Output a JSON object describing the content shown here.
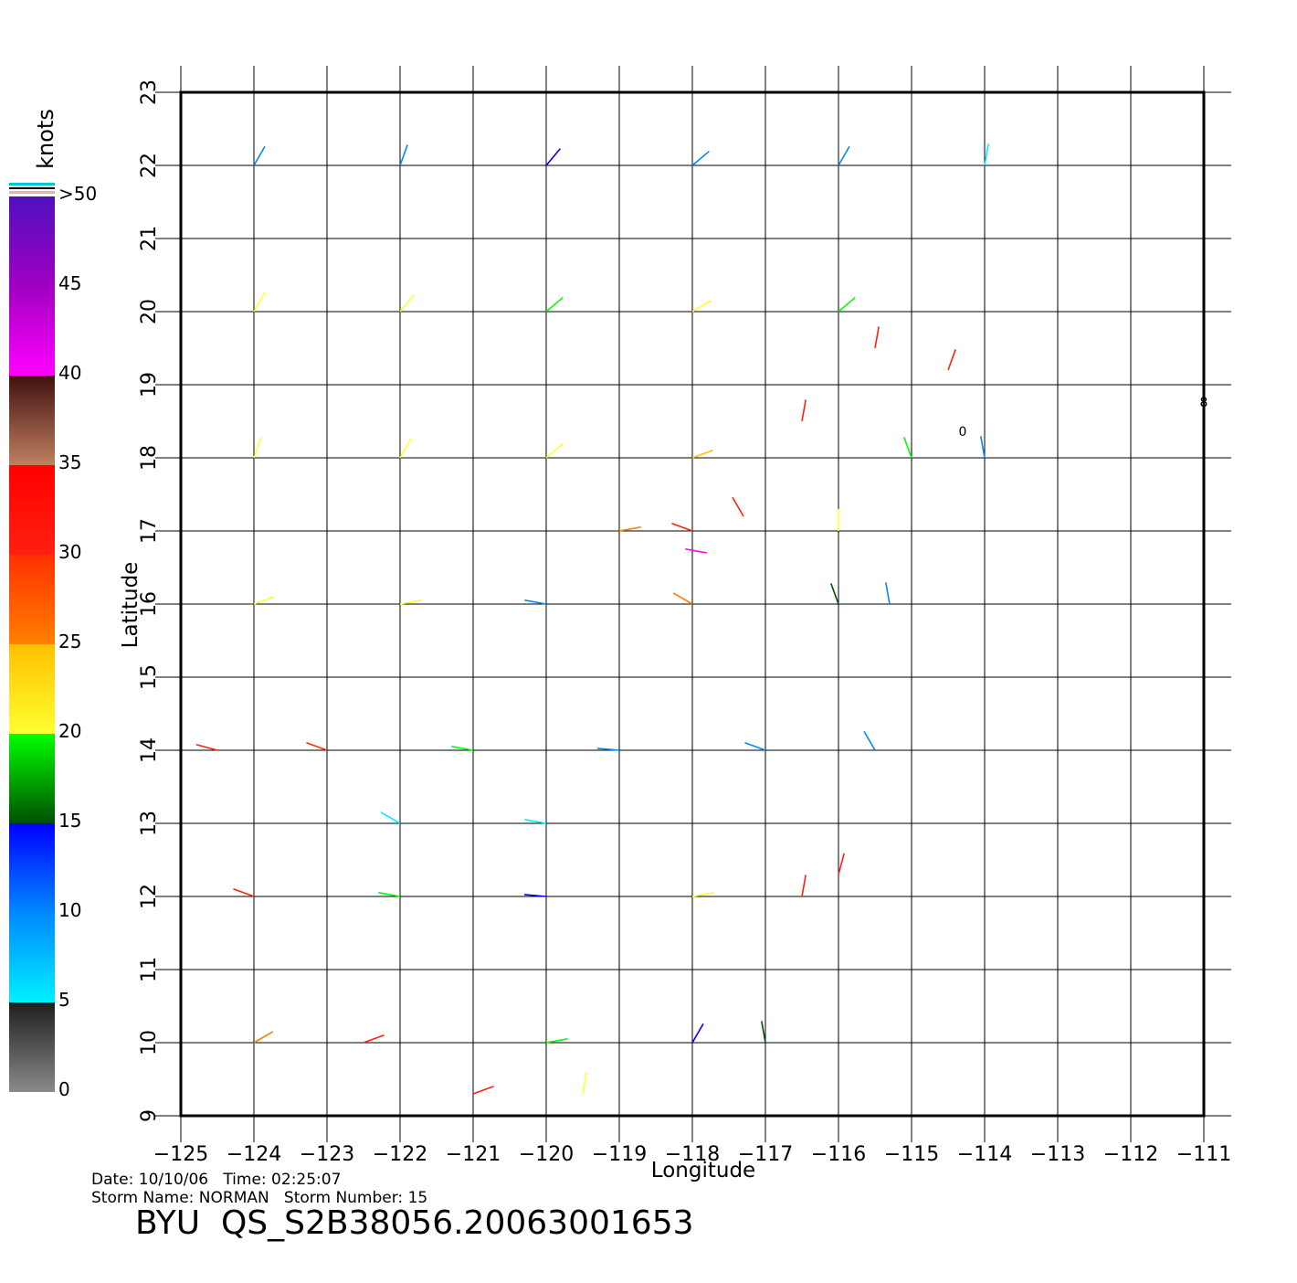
{
  "map": {
    "xlabel": "Longitude",
    "ylabel": "Latitude",
    "xlim": [
      -125,
      -111
    ],
    "ylim": [
      9,
      23
    ],
    "xticks": [
      {
        "value": -125,
        "label": "−125"
      },
      {
        "value": -124,
        "label": "−124"
      },
      {
        "value": -123,
        "label": "−123"
      },
      {
        "value": -122,
        "label": "−122"
      },
      {
        "value": -121,
        "label": "−121"
      },
      {
        "value": -120,
        "label": "−120"
      },
      {
        "value": -119,
        "label": "−119"
      },
      {
        "value": -118,
        "label": "−118"
      },
      {
        "value": -117,
        "label": "−117"
      },
      {
        "value": -116,
        "label": "−116"
      },
      {
        "value": -115,
        "label": "−115"
      },
      {
        "value": -114,
        "label": "−114"
      },
      {
        "value": -113,
        "label": "−113"
      },
      {
        "value": -112,
        "label": "−112"
      },
      {
        "value": -111,
        "label": "−111"
      }
    ],
    "yticks": [
      9,
      10,
      11,
      12,
      13,
      14,
      15,
      16,
      17,
      18,
      19,
      20,
      21,
      22,
      23
    ],
    "grid": true,
    "colorbar": {
      "title": "knots",
      "ticks": [
        0,
        5,
        10,
        15,
        20,
        25,
        30,
        35,
        40,
        45,
        {
          "value": 50,
          "label": ">50"
        }
      ],
      "bands": [
        [
          "#8a8a8a",
          "#1e1e1e"
        ],
        [
          "#00f0ff",
          "#0088ff"
        ],
        [
          "#0088ff",
          "#0000ff"
        ],
        [
          "#005000",
          "#00ff00"
        ],
        [
          "#ffff30",
          "#ffc000"
        ],
        [
          "#ff8000",
          "#ff3000"
        ],
        [
          "#ff2010",
          "#ff0000"
        ],
        [
          "#c08060",
          "#401010"
        ],
        [
          "#ff00ff",
          "#a000c0"
        ],
        [
          "#a000c0",
          "#5010c0"
        ]
      ]
    },
    "winds": {
      "lon": [
        -124,
        -122,
        -120,
        -118,
        -116,
        -114,
        -124,
        -122,
        -120,
        -118,
        -116,
        -115.5,
        -114.5,
        -124,
        -122,
        -120,
        -118,
        -116.5,
        -115,
        -114,
        -118,
        -117.3,
        -119,
        -116,
        -117.8,
        -124,
        -122,
        -120,
        -118,
        -116,
        -115.3,
        -124.5,
        -123,
        -121,
        -119,
        -117,
        -115.5,
        -122,
        -120,
        -124,
        -122,
        -120,
        -118,
        -116.5,
        -116,
        -124,
        -122.5,
        -120,
        -118,
        -117,
        -121,
        -119.5
      ],
      "lat": [
        22,
        22,
        22,
        22,
        22,
        22,
        20,
        20,
        20,
        20,
        20,
        19.5,
        19.2,
        18,
        18,
        18,
        18,
        18.5,
        18,
        18,
        17,
        17.2,
        17,
        17,
        16.7,
        16,
        16,
        16,
        16,
        16,
        16,
        14,
        14,
        14,
        14,
        14,
        14,
        13,
        13,
        12,
        12,
        12,
        12,
        12,
        12.3,
        10,
        10,
        10,
        10,
        10,
        9.3,
        9.3
      ],
      "speed": [
        10,
        12,
        14,
        12,
        10,
        7,
        20,
        20,
        18,
        22,
        18,
        30,
        32,
        20,
        22,
        22,
        24,
        30,
        18,
        10,
        30,
        32,
        25,
        20,
        42,
        22,
        20,
        12,
        26,
        16,
        10,
        30,
        28,
        18,
        10,
        10,
        8,
        5,
        7,
        30,
        18,
        14,
        20,
        30,
        32,
        25,
        30,
        18,
        14,
        16,
        30,
        20
      ],
      "dir": [
        60,
        70,
        50,
        40,
        60,
        80,
        60,
        50,
        40,
        30,
        40,
        80,
        70,
        70,
        60,
        40,
        20,
        80,
        110,
        100,
        160,
        120,
        10,
        90,
        170,
        20,
        10,
        170,
        150,
        110,
        100,
        165,
        160,
        170,
        175,
        160,
        120,
        150,
        170,
        160,
        170,
        175,
        10,
        80,
        75,
        30,
        20,
        10,
        60,
        100,
        20,
        80
      ]
    },
    "annotations": [
      {
        "text": "0",
        "lon": -114.3,
        "lat": 18.3
      },
      {
        "text": "8",
        "lon": -111,
        "lat": 18.7
      }
    ],
    "footer": {
      "date": "Date: 10/10/06   Time: 02:25:07",
      "storm": "Storm Name: NORMAN   Storm Number: 15",
      "file": "BYU  QS_S2B38056.20063001653"
    }
  }
}
